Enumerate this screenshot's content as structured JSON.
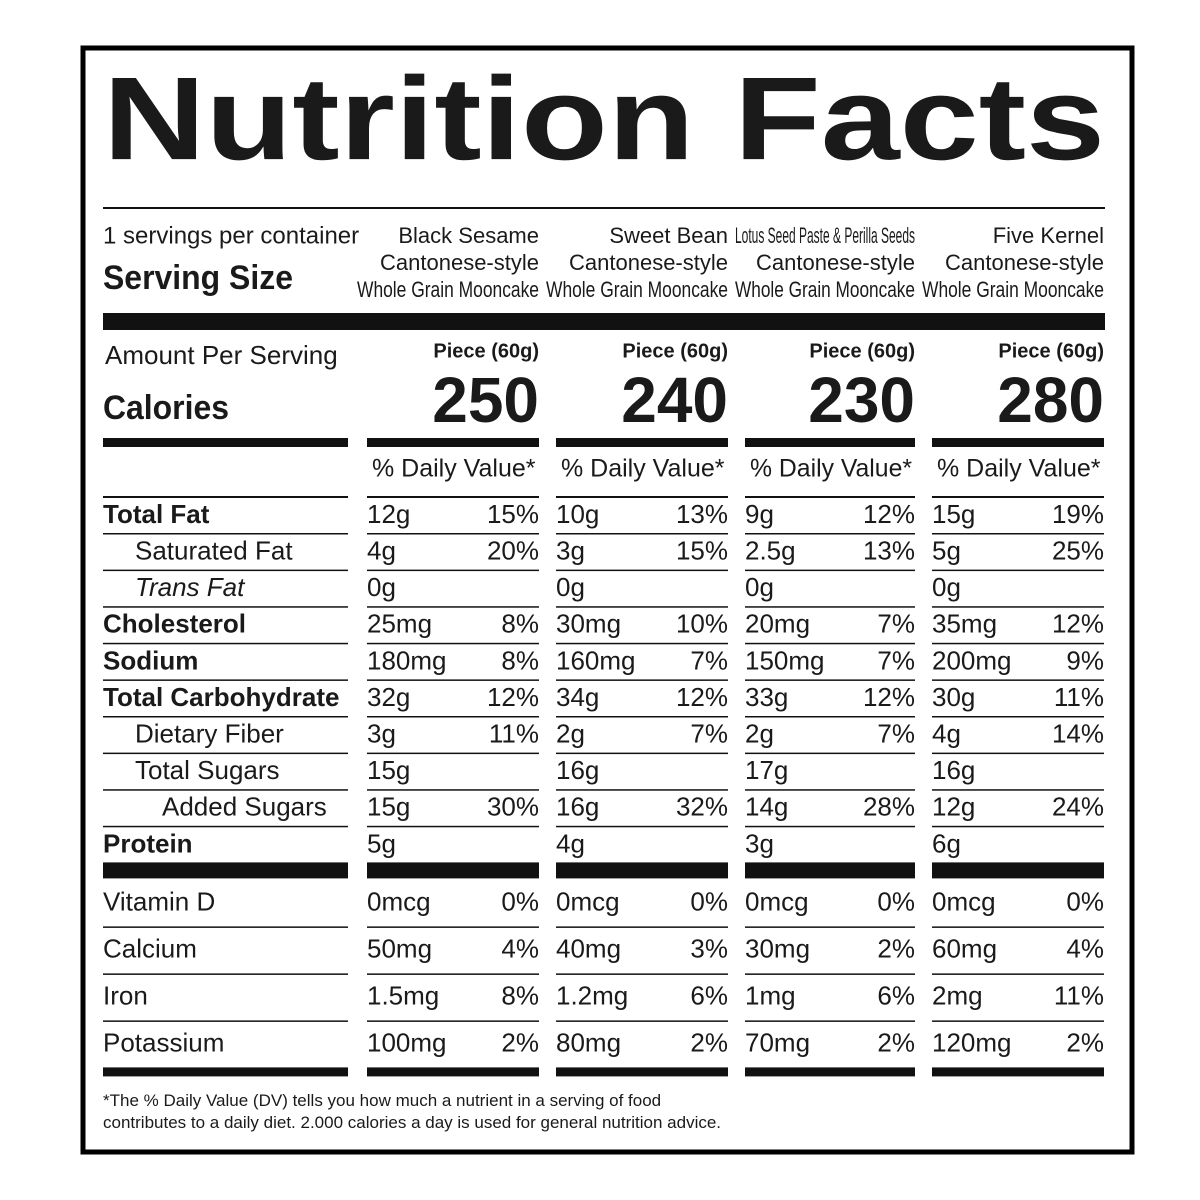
{
  "title": "Nutrition Facts",
  "servings_per_container": "1 servings per container",
  "serving_size_label": "Serving Size",
  "amount_per_serving": "Amount Per Serving",
  "calories_label": "Calories",
  "daily_value_header": "% Daily Value*",
  "products": [
    {
      "name_lines": [
        "Black Sesame",
        "Cantonese-style",
        "Whole Grain Mooncake"
      ],
      "serving": "Piece (60g)",
      "calories": 250
    },
    {
      "name_lines": [
        "Sweet Bean",
        "Cantonese-style",
        "Whole Grain Mooncake"
      ],
      "serving": "Piece (60g)",
      "calories": 240
    },
    {
      "name_lines": [
        "Lotus Seed Paste & Perilla Seeds",
        "Cantonese-style",
        "Whole Grain Mooncake"
      ],
      "serving": "Piece (60g)",
      "calories": 230
    },
    {
      "name_lines": [
        "Five Kernel",
        "Cantonese-style",
        "Whole Grain Mooncake"
      ],
      "serving": "Piece (60g)",
      "calories": 280
    }
  ],
  "nutrients": [
    {
      "label": "Total Fat",
      "bold": true,
      "indent": 0,
      "values": [
        [
          "12g",
          "15%"
        ],
        [
          "10g",
          "13%"
        ],
        [
          "9g",
          "12%"
        ],
        [
          "15g",
          "19%"
        ]
      ]
    },
    {
      "label": "Saturated Fat",
      "indent": 1,
      "values": [
        [
          "4g",
          "20%"
        ],
        [
          "3g",
          "15%"
        ],
        [
          "2.5g",
          "13%"
        ],
        [
          "5g",
          "25%"
        ]
      ]
    },
    {
      "label": "Trans Fat",
      "italic": true,
      "indent": 1,
      "values": [
        [
          "0g",
          null
        ],
        [
          "0g",
          null
        ],
        [
          "0g",
          null
        ],
        [
          "0g",
          null
        ]
      ]
    },
    {
      "label": "Cholesterol",
      "bold": true,
      "indent": 0,
      "values": [
        [
          "25mg",
          "8%"
        ],
        [
          "30mg",
          "10%"
        ],
        [
          "20mg",
          "7%"
        ],
        [
          "35mg",
          "12%"
        ]
      ]
    },
    {
      "label": "Sodium",
      "bold": true,
      "indent": 0,
      "values": [
        [
          "180mg",
          "8%"
        ],
        [
          "160mg",
          "7%"
        ],
        [
          "150mg",
          "7%"
        ],
        [
          "200mg",
          "9%"
        ]
      ]
    },
    {
      "label": "Total Carbohydrate",
      "bold": true,
      "indent": 0,
      "values": [
        [
          "32g",
          "12%"
        ],
        [
          "34g",
          "12%"
        ],
        [
          "33g",
          "12%"
        ],
        [
          "30g",
          "11%"
        ]
      ]
    },
    {
      "label": "Dietary Fiber",
      "indent": 1,
      "values": [
        [
          "3g",
          "11%"
        ],
        [
          "2g",
          "7%"
        ],
        [
          "2g",
          "7%"
        ],
        [
          "4g",
          "14%"
        ]
      ]
    },
    {
      "label": "Total Sugars",
      "indent": 1,
      "values": [
        [
          "15g",
          null
        ],
        [
          "16g",
          null
        ],
        [
          "17g",
          null
        ],
        [
          "16g",
          null
        ]
      ]
    },
    {
      "label": "Added Sugars",
      "indent": 2,
      "values": [
        [
          "15g",
          "30%"
        ],
        [
          "16g",
          "32%"
        ],
        [
          "14g",
          "28%"
        ],
        [
          "12g",
          "24%"
        ]
      ]
    },
    {
      "label": "Protein",
      "bold": true,
      "indent": 0,
      "values": [
        [
          "5g",
          null
        ],
        [
          "4g",
          null
        ],
        [
          "3g",
          null
        ],
        [
          "6g",
          null
        ]
      ]
    }
  ],
  "minerals": [
    {
      "label": "Vitamin D",
      "values": [
        [
          "0mcg",
          "0%"
        ],
        [
          "0mcg",
          "0%"
        ],
        [
          "0mcg",
          "0%"
        ],
        [
          "0mcg",
          "0%"
        ]
      ]
    },
    {
      "label": "Calcium",
      "values": [
        [
          "50mg",
          "4%"
        ],
        [
          "40mg",
          "3%"
        ],
        [
          "30mg",
          "2%"
        ],
        [
          "60mg",
          "4%"
        ]
      ]
    },
    {
      "label": "Iron",
      "values": [
        [
          "1.5mg",
          "8%"
        ],
        [
          "1.2mg",
          "6%"
        ],
        [
          "1mg",
          "6%"
        ],
        [
          "2mg",
          "11%"
        ]
      ]
    },
    {
      "label": "Potassium",
      "values": [
        [
          "100mg",
          "2%"
        ],
        [
          "80mg",
          "2%"
        ],
        [
          "70mg",
          "2%"
        ],
        [
          "120mg",
          "2%"
        ]
      ]
    }
  ],
  "footnote": [
    "*The % Daily Value (DV) tells you how much a nutrient in a serving of food",
    "contributes to a daily diet. 2.000 calories a day is used for general nutrition advice."
  ]
}
